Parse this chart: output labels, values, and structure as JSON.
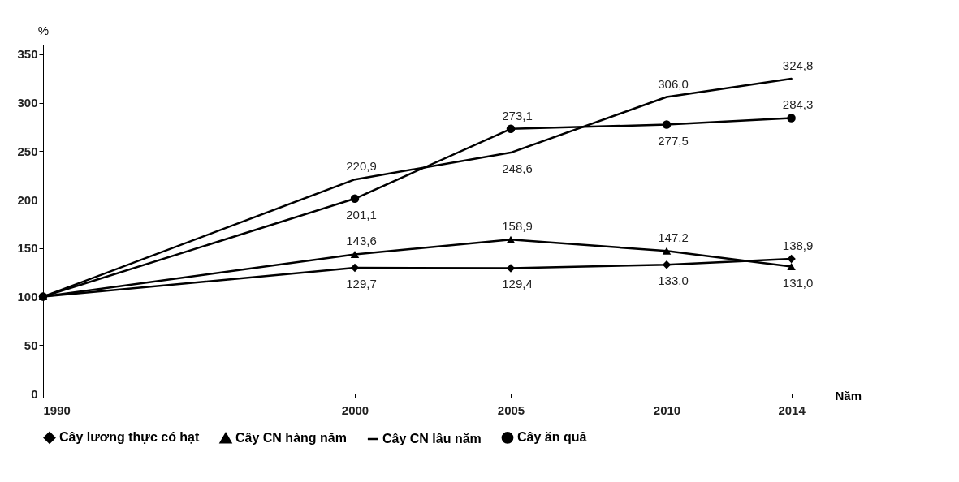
{
  "chart_data": {
    "type": "line",
    "xlabel": "Năm",
    "ylabel": "%",
    "x": [
      1990,
      2000,
      2005,
      2010,
      2014
    ],
    "xlim": [
      1990,
      2015
    ],
    "xticks": [
      1990,
      2000,
      2005,
      2010,
      2014
    ],
    "ylim": [
      0,
      360
    ],
    "yticks": [
      0,
      50,
      100,
      150,
      200,
      250,
      300,
      350
    ],
    "grid": false,
    "legend": "bottom",
    "line_style": "solid",
    "series": [
      {
        "name": "Cây lương thực có hạt",
        "color": "#000000",
        "marker": "diamond",
        "values": [
          100,
          129.7,
          129.4,
          133.0,
          138.9
        ],
        "value_labels": [
          null,
          "129,7",
          "129,4",
          "133,0",
          "138,9"
        ]
      },
      {
        "name": "Cây CN hàng năm",
        "color": "#000000",
        "marker": "triangle",
        "values": [
          100,
          143.6,
          158.9,
          147.2,
          131.0
        ],
        "value_labels": [
          null,
          "143,6",
          "158,9",
          "147,2",
          "131,0"
        ]
      },
      {
        "name": "Cây CN lâu năm",
        "color": "#000000",
        "marker": "none",
        "values": [
          100,
          220.9,
          248.6,
          306.0,
          324.8
        ],
        "value_labels": [
          null,
          "220,9",
          "248,6",
          "306,0",
          "324,8"
        ]
      },
      {
        "name": "Cây ăn quả",
        "color": "#000000",
        "marker": "circle",
        "values": [
          100,
          201.1,
          273.1,
          277.5,
          284.3
        ],
        "value_labels": [
          null,
          "201,1",
          "273,1",
          "277,5",
          "284,3"
        ]
      }
    ]
  }
}
